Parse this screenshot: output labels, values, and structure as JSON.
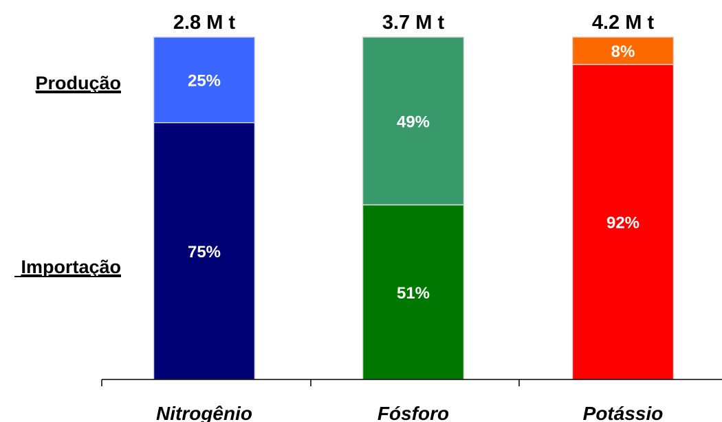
{
  "chart_data": {
    "type": "bar",
    "stacked": true,
    "percent_scale": true,
    "categories": [
      "Nitrogênio",
      "Fósforo",
      "Potássio"
    ],
    "totals": [
      "2.8 M t",
      "3.7 M t",
      "4.2 M t"
    ],
    "series": [
      {
        "name": "Importação",
        "values": [
          75,
          51,
          92
        ],
        "labels": [
          "75%",
          "51%",
          "92%"
        ],
        "colors": [
          "#000075",
          "#007800",
          "#ff0000"
        ]
      },
      {
        "name": "Produção",
        "values": [
          25,
          49,
          8
        ],
        "labels": [
          "25%",
          "49%",
          "8%"
        ],
        "colors": [
          "#3a66ff",
          "#38996a",
          "#ff6a00"
        ]
      }
    ],
    "ylim": [
      0,
      100
    ],
    "grid": false,
    "legend": "left"
  }
}
